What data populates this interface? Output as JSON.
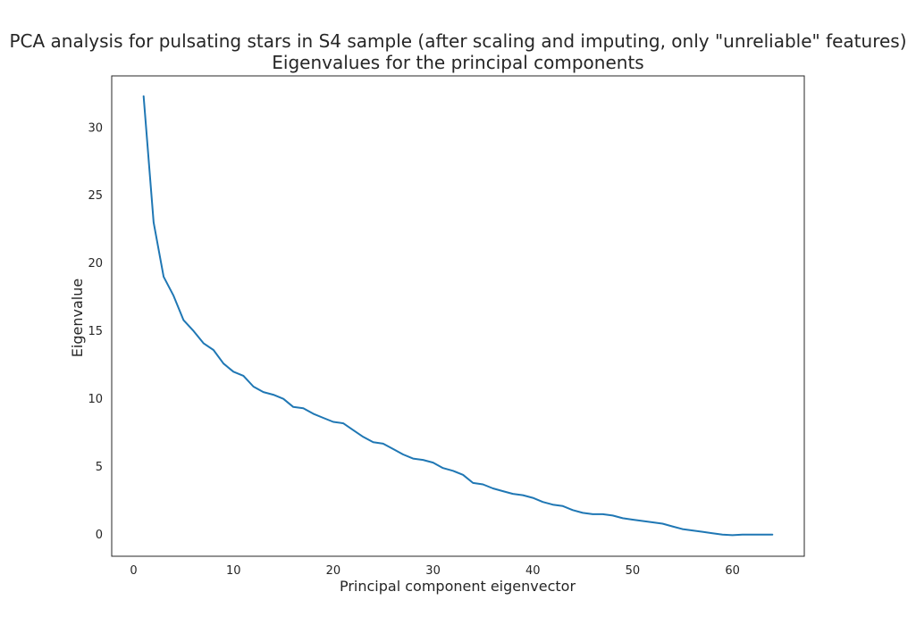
{
  "chart_data": {
    "type": "line",
    "title": "PCA analysis for pulsating stars in S4 sample (after scaling and imputing, only \"unreliable\" features)",
    "subtitle": "Eigenvalues for the principal components",
    "xlabel": "Principal component eigenvector",
    "ylabel": "Eigenvalue",
    "xlim": [
      -2.2,
      67.2
    ],
    "ylim": [
      -1.6,
      33.8
    ],
    "xticks": [
      0,
      10,
      20,
      30,
      40,
      50,
      60
    ],
    "yticks": [
      0,
      5,
      10,
      15,
      20,
      25,
      30
    ],
    "grid": false,
    "color": "#1f77b4",
    "series": [
      {
        "x": [
          1,
          2,
          3,
          4,
          5,
          6,
          7,
          8,
          9,
          10,
          11,
          12,
          13,
          14,
          15,
          16,
          17,
          18,
          19,
          20,
          21,
          22,
          23,
          24,
          25,
          26,
          27,
          28,
          29,
          30,
          31,
          32,
          33,
          34,
          35,
          36,
          37,
          38,
          39,
          40,
          41,
          42,
          43,
          44,
          45,
          46,
          47,
          48,
          49,
          50,
          51,
          52,
          53,
          54,
          55,
          56,
          57,
          58,
          59,
          60,
          61,
          62,
          63,
          64
        ],
        "values": [
          32.3,
          23.0,
          19.0,
          17.6,
          15.8,
          15.0,
          14.1,
          13.6,
          12.6,
          12.0,
          11.7,
          10.9,
          10.5,
          10.3,
          10.0,
          9.4,
          9.3,
          8.9,
          8.6,
          8.3,
          8.2,
          7.7,
          7.2,
          6.8,
          6.7,
          6.3,
          5.9,
          5.6,
          5.5,
          5.3,
          4.9,
          4.7,
          4.4,
          3.8,
          3.7,
          3.4,
          3.2,
          3.0,
          2.9,
          2.7,
          2.4,
          2.2,
          2.1,
          1.8,
          1.6,
          1.5,
          1.5,
          1.4,
          1.2,
          1.1,
          1.0,
          0.9,
          0.8,
          0.6,
          0.4,
          0.3,
          0.2,
          0.1,
          0.0,
          -0.05,
          0.0,
          0.0,
          0.0,
          0.0
        ]
      }
    ]
  }
}
